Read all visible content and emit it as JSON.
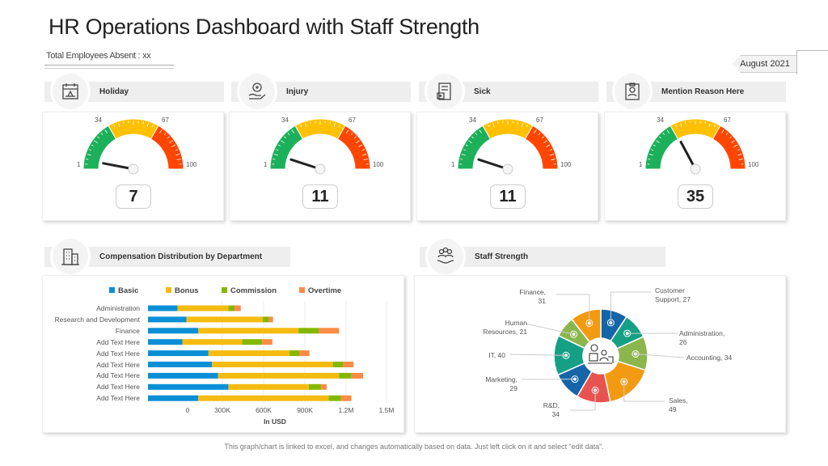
{
  "title": "HR Operations Dashboard with Staff Strength",
  "absent_label": "Total Employees Absent : xx",
  "date": "August 2021",
  "gauges": [
    {
      "label": "Holiday",
      "value": 7,
      "icon": "calendar-beach-icon"
    },
    {
      "label": "Injury",
      "value": 11,
      "icon": "hand-medical-icon"
    },
    {
      "label": "Sick",
      "value": 11,
      "icon": "sick-report-icon"
    },
    {
      "label": "Mention Reason Here",
      "value": 35,
      "icon": "clipboard-person-icon"
    }
  ],
  "gauge_scale": {
    "min": "1",
    "t1": "34",
    "t2": "67",
    "max": "100",
    "colors": [
      "#1db05a",
      "#ffc000",
      "#ff4600"
    ]
  },
  "compensation": {
    "title": "Compensation Distribution by Department",
    "icon": "building-icon"
  },
  "staff": {
    "title": "Staff Strength",
    "icon": "team-hand-icon"
  },
  "footer": "This graph/chart is linked to excel, and changes automatically based on data. Just left click on it and select “edit data”.",
  "chart_data": [
    {
      "type": "bar",
      "orientation": "horizontal",
      "stacked": true,
      "categories": [
        "Administration",
        "Research and Development",
        "Finance",
        "Add Text Here",
        "Add Text Here",
        "Add Text Here",
        "Add Text Here",
        "Add Text Here",
        "Add Text Here"
      ],
      "series": [
        {
          "name": "Basic",
          "color": "#0a8fd6",
          "values": [
            215000,
            280000,
            365000,
            250000,
            440000,
            465000,
            510000,
            585000,
            365000
          ]
        },
        {
          "name": "Bonus",
          "color": "#f5bb10",
          "values": [
            370000,
            555000,
            730000,
            435000,
            590000,
            880000,
            880000,
            585000,
            950000
          ]
        },
        {
          "name": "Commission",
          "color": "#84b800",
          "values": [
            45000,
            45000,
            150000,
            145000,
            70000,
            75000,
            90000,
            90000,
            90000
          ]
        },
        {
          "name": "Overtime",
          "color": "#ff8a45",
          "values": [
            45000,
            30000,
            145000,
            75000,
            75000,
            75000,
            85000,
            40000,
            75000
          ]
        }
      ],
      "xticks": [
        "0",
        "300K",
        "600K",
        "900K",
        "1.2M",
        "1.5M"
      ],
      "xlabel": "In USD",
      "legend": "top"
    },
    {
      "type": "pie",
      "donut": true,
      "slices": [
        {
          "label": "Customer Support",
          "value": 27,
          "color": "#1565a8"
        },
        {
          "label": "Administration",
          "value": 26,
          "color": "#15a085"
        },
        {
          "label": "Accounting",
          "value": 34,
          "color": "#8bb64d"
        },
        {
          "label": "Sales",
          "value": 49,
          "color": "#f29a12"
        },
        {
          "label": "R&D",
          "value": 34,
          "color": "#e9534f"
        },
        {
          "label": "Marketing",
          "value": 29,
          "color": "#1565a8"
        },
        {
          "label": "IT",
          "value": 40,
          "color": "#15a085"
        },
        {
          "label": "Human Resources",
          "value": 21,
          "color": "#8bb64d"
        },
        {
          "label": "Finance",
          "value": 31,
          "color": "#f29a12"
        }
      ],
      "display_labels": [
        "Customer\nSupport, 27",
        "Administration,\n26",
        "Accounting, 34",
        "Sales,\n49",
        "R&D,\n34",
        "Marketing,\n29",
        "IT, 40",
        "Human\nResources, 21",
        "Finance,\n31"
      ]
    }
  ]
}
